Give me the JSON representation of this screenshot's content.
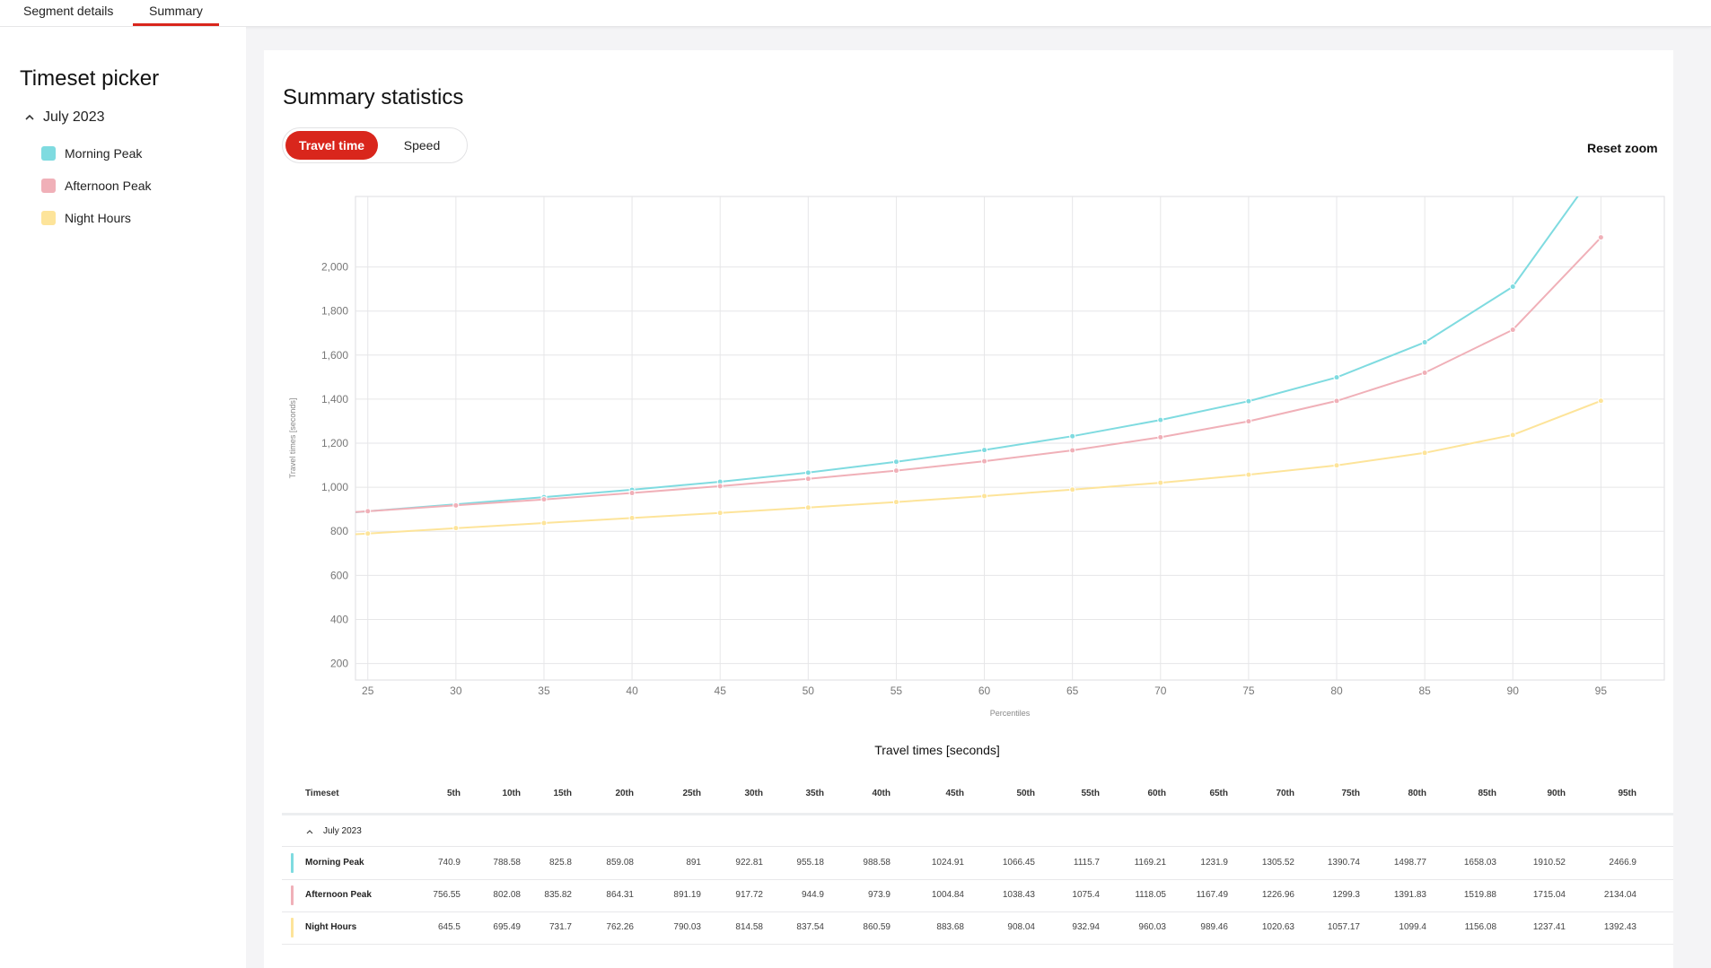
{
  "tabs": [
    {
      "label": "Segment details",
      "active": false
    },
    {
      "label": "Summary",
      "active": true
    }
  ],
  "sidebar": {
    "title": "Timeset picker",
    "group_label": "July 2023",
    "items": [
      {
        "label": "Morning Peak",
        "color": "#7fdbe0"
      },
      {
        "label": "Afternoon Peak",
        "color": "#f0b0b8"
      },
      {
        "label": "Night Hours",
        "color": "#fde49a"
      }
    ]
  },
  "main": {
    "title": "Summary statistics",
    "toggle": {
      "on_label": "Travel time",
      "off_label": "Speed"
    },
    "reset_zoom_label": "Reset zoom"
  },
  "chart_data": {
    "type": "line",
    "title": "",
    "xlabel": "Percentiles",
    "ylabel": "Travel times [seconds]",
    "x": [
      25,
      30,
      35,
      40,
      45,
      50,
      55,
      60,
      65,
      70,
      75,
      80,
      85,
      90,
      95
    ],
    "xlim": [
      24.3,
      98.6
    ],
    "ylim": [
      125,
      2320
    ],
    "yticks": [
      "200",
      "400",
      "600",
      "800",
      "1,000",
      "1,200",
      "1,400",
      "1,600",
      "1,800",
      "2,000"
    ],
    "ytick_values": [
      200,
      400,
      600,
      800,
      1000,
      1200,
      1400,
      1600,
      1800,
      2000
    ],
    "grid": true,
    "series": [
      {
        "name": "Morning Peak",
        "color": "#7fdbe0",
        "values": [
          891,
          922.81,
          955.18,
          988.58,
          1024.91,
          1066.45,
          1115.7,
          1169.21,
          1231.9,
          1305.52,
          1390.74,
          1498.77,
          1658.03,
          1910.52,
          2466.9
        ]
      },
      {
        "name": "Afternoon Peak",
        "color": "#f0b0b8",
        "values": [
          891.19,
          917.72,
          944.9,
          973.9,
          1004.84,
          1038.43,
          1075.4,
          1118.05,
          1167.49,
          1226.96,
          1299.3,
          1391.83,
          1519.88,
          1715.04,
          2134.04
        ]
      },
      {
        "name": "Night Hours",
        "color": "#fde49a",
        "values": [
          790.03,
          814.58,
          837.54,
          860.59,
          883.68,
          908.04,
          932.94,
          960.03,
          989.46,
          1020.63,
          1057.17,
          1099.4,
          1156.08,
          1237.41,
          1392.43
        ]
      }
    ]
  },
  "table": {
    "title": "Travel times [seconds]",
    "timeset_header": "Timeset",
    "columns": [
      "5th",
      "10th",
      "15th",
      "20th",
      "25th",
      "30th",
      "35th",
      "40th",
      "45th",
      "50th",
      "55th",
      "60th",
      "65th",
      "70th",
      "75th",
      "80th",
      "85th",
      "90th",
      "95th"
    ],
    "group_label": "July 2023",
    "rows": [
      {
        "name": "Morning Peak",
        "color": "#7fdbe0",
        "values": [
          "740.9",
          "788.58",
          "825.8",
          "859.08",
          "891",
          "922.81",
          "955.18",
          "988.58",
          "1024.91",
          "1066.45",
          "1115.7",
          "1169.21",
          "1231.9",
          "1305.52",
          "1390.74",
          "1498.77",
          "1658.03",
          "1910.52",
          "2466.9"
        ]
      },
      {
        "name": "Afternoon Peak",
        "color": "#f0b0b8",
        "values": [
          "756.55",
          "802.08",
          "835.82",
          "864.31",
          "891.19",
          "917.72",
          "944.9",
          "973.9",
          "1004.84",
          "1038.43",
          "1075.4",
          "1118.05",
          "1167.49",
          "1226.96",
          "1299.3",
          "1391.83",
          "1519.88",
          "1715.04",
          "2134.04"
        ]
      },
      {
        "name": "Night Hours",
        "color": "#fde49a",
        "values": [
          "645.5",
          "695.49",
          "731.7",
          "762.26",
          "790.03",
          "814.58",
          "837.54",
          "860.59",
          "883.68",
          "908.04",
          "932.94",
          "960.03",
          "989.46",
          "1020.63",
          "1057.17",
          "1099.4",
          "1156.08",
          "1237.41",
          "1392.43"
        ]
      }
    ]
  }
}
